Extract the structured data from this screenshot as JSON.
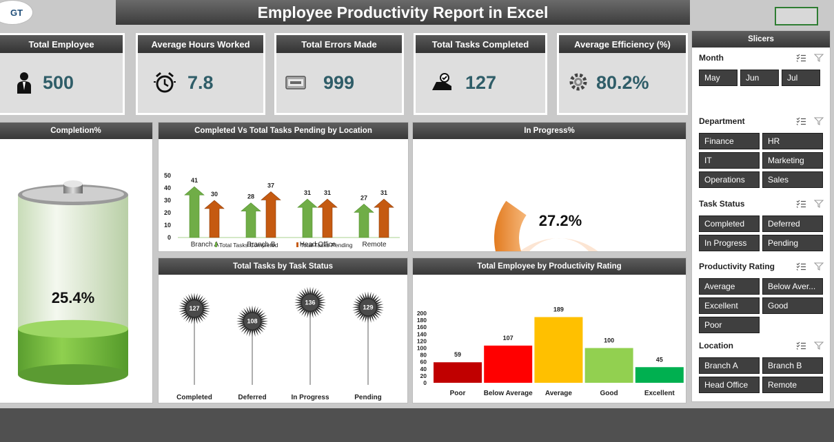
{
  "logo": "GT",
  "title": "Employee Productivity Report in Excel",
  "kpis": [
    {
      "label": "Total Employee",
      "value": "500",
      "icon": "employee-icon"
    },
    {
      "label": "Average Hours Worked",
      "value": "7.8",
      "icon": "alarm-clock-icon"
    },
    {
      "label": "Total Errors Made",
      "value": "999",
      "icon": "error-icon"
    },
    {
      "label": "Total Tasks Completed",
      "value": "127",
      "icon": "task-done-icon"
    },
    {
      "label": "Average Efficiency (%)",
      "value": "80.2%",
      "icon": "gear-icon"
    }
  ],
  "panels": {
    "completion": {
      "title": "Completion%",
      "value": "25.4%",
      "fraction": 0.254
    },
    "location": {
      "title": "Completed Vs Total Tasks Pending by Location"
    },
    "inprogress": {
      "title": "In Progress%",
      "value": "27.2%",
      "fraction": 0.272
    },
    "status": {
      "title": "Total Tasks by Task Status"
    },
    "rating": {
      "title": "Total Employee by Productivity Rating"
    }
  },
  "chart_data": [
    {
      "id": "location",
      "type": "bar",
      "categories": [
        "Branch A",
        "Branch B",
        "Head Office",
        "Remote"
      ],
      "series": [
        {
          "name": "Total Tasks Completed",
          "values": [
            41,
            28,
            31,
            27
          ],
          "color": "#70ad47"
        },
        {
          "name": "Total Tasks Pending",
          "values": [
            30,
            37,
            31,
            31
          ],
          "color": "#c55a11"
        }
      ],
      "yticks": [
        0,
        10,
        20,
        30,
        40,
        50
      ],
      "ylim": [
        0,
        50
      ],
      "legend": "bottom"
    },
    {
      "id": "status",
      "type": "bar",
      "categories": [
        "Completed",
        "Deferred",
        "In Progress",
        "Pending"
      ],
      "values": [
        127,
        108,
        136,
        129
      ],
      "ylim": [
        0,
        150
      ]
    },
    {
      "id": "rating",
      "type": "bar",
      "categories": [
        "Poor",
        "Below Average",
        "Average",
        "Good",
        "Excellent"
      ],
      "values": [
        59,
        107,
        189,
        100,
        45
      ],
      "colors": [
        "#c00000",
        "#ff0000",
        "#ffc000",
        "#92d050",
        "#00b050"
      ],
      "yticks": [
        0,
        20,
        40,
        60,
        80,
        100,
        120,
        140,
        160,
        180,
        200
      ],
      "ylim": [
        0,
        200
      ]
    }
  ],
  "slicers": {
    "title": "Slicers",
    "groups": [
      {
        "title": "Month",
        "items": [
          "May",
          "Jun",
          "Jul"
        ]
      },
      {
        "title": "Department",
        "items": [
          "Finance",
          "HR",
          "IT",
          "Marketing",
          "Operations",
          "Sales"
        ]
      },
      {
        "title": "Task Status",
        "items": [
          "Completed",
          "Deferred",
          "In Progress",
          "Pending"
        ]
      },
      {
        "title": "Productivity Rating",
        "items": [
          "Average",
          "Below Aver...",
          "Excellent",
          "Good",
          "Poor"
        ]
      },
      {
        "title": "Location",
        "items": [
          "Branch A",
          "Branch B",
          "Head Office",
          "Remote"
        ]
      }
    ]
  }
}
